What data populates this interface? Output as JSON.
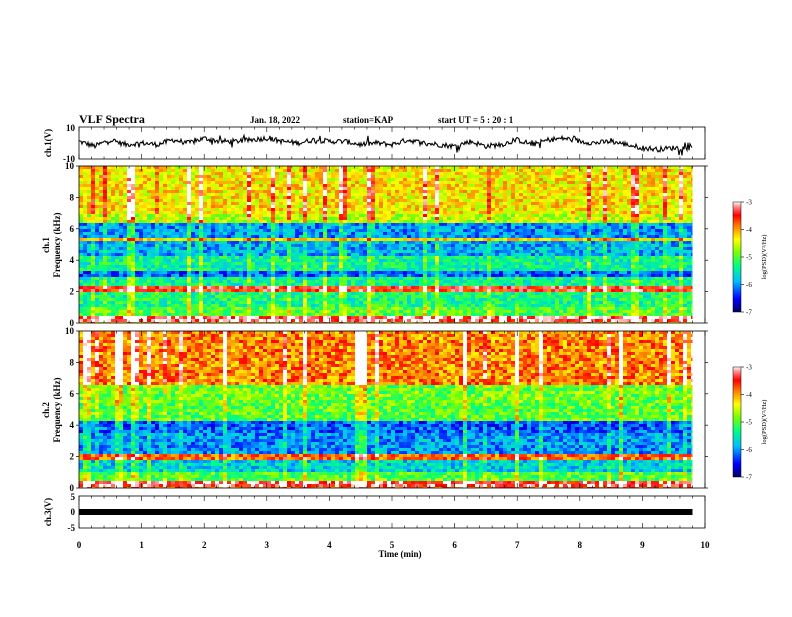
{
  "header": {
    "title": "VLF Spectra",
    "date": "Jan. 18, 2022",
    "station": "station=KAP",
    "start_ut": "start UT =  5 : 20 : 1"
  },
  "chart_data": [
    {
      "type": "line",
      "panel": "ch1-waveform",
      "ylabel": "ch.1(V)",
      "ylim": [
        -10,
        10
      ],
      "y_ticks": [
        "10",
        "-10"
      ],
      "x": [
        0,
        0.25,
        0.5,
        0.75,
        1.0,
        1.25,
        1.5,
        1.75,
        2.0,
        2.25,
        2.5,
        2.75,
        3.0,
        3.25,
        3.5,
        3.75,
        4.0,
        4.25,
        4.5,
        4.75,
        5.0,
        5.25,
        5.5,
        5.75,
        6.0,
        6.25,
        6.5,
        6.75,
        7.0,
        7.25,
        7.5,
        7.75,
        8.0,
        8.25,
        8.5,
        8.75,
        9.0,
        9.25,
        9.5,
        9.8
      ],
      "values": [
        1,
        -2,
        2,
        -1,
        0,
        -1,
        2,
        0,
        3,
        1,
        1,
        2,
        3,
        1,
        0,
        2,
        1,
        1,
        -1,
        0,
        -1,
        2,
        0,
        -1,
        -2,
        1,
        -2,
        -1,
        2,
        -1,
        2,
        3,
        1,
        0,
        1,
        -1,
        -3,
        -4,
        -3,
        -3
      ],
      "xlim": [
        0,
        10
      ]
    },
    {
      "type": "heatmap",
      "panel": "ch1-spectrogram",
      "ylabel": "ch.1",
      "ylabel2": "Frequency (kHz)",
      "ylim": [
        0,
        10
      ],
      "y_ticks": [
        "0",
        "2",
        "4",
        "6",
        "8",
        "10"
      ],
      "xlim": [
        0,
        10
      ],
      "freq_band_intensity": [
        {
          "from": 0,
          "to": 0.4,
          "level": -3.2
        },
        {
          "from": 0.4,
          "to": 1.0,
          "level": -5.0
        },
        {
          "from": 1.0,
          "to": 2.0,
          "level": -5.3
        },
        {
          "from": 2.0,
          "to": 2.3,
          "level": -3.5
        },
        {
          "from": 2.3,
          "to": 3.0,
          "level": -5.4
        },
        {
          "from": 3.0,
          "to": 3.4,
          "level": -6.2
        },
        {
          "from": 3.4,
          "to": 4.2,
          "level": -5.4
        },
        {
          "from": 4.2,
          "to": 5.2,
          "level": -5.9
        },
        {
          "from": 5.2,
          "to": 5.5,
          "level": -4.3
        },
        {
          "from": 5.5,
          "to": 6.3,
          "level": -6.0
        },
        {
          "from": 6.3,
          "to": 7.0,
          "level": -4.6
        },
        {
          "from": 7.0,
          "to": 10.0,
          "level": -4.3
        }
      ]
    },
    {
      "type": "heatmap",
      "panel": "ch2-spectrogram",
      "ylabel": "ch.2",
      "ylabel2": "Frequency (kHz)",
      "ylim": [
        0,
        10
      ],
      "y_ticks": [
        "0",
        "2",
        "4",
        "6",
        "8",
        "10"
      ],
      "xlim": [
        0,
        10
      ],
      "freq_band_intensity": [
        {
          "from": 0,
          "to": 0.4,
          "level": -3.3
        },
        {
          "from": 0.4,
          "to": 1.0,
          "level": -5.0
        },
        {
          "from": 1.0,
          "to": 1.7,
          "level": -5.7
        },
        {
          "from": 1.7,
          "to": 2.1,
          "level": -3.8
        },
        {
          "from": 2.1,
          "to": 3.5,
          "level": -6.0
        },
        {
          "from": 3.5,
          "to": 4.2,
          "level": -6.2
        },
        {
          "from": 4.2,
          "to": 5.5,
          "level": -5.0
        },
        {
          "from": 5.5,
          "to": 6.5,
          "level": -4.9
        },
        {
          "from": 6.5,
          "to": 10.0,
          "level": -3.9
        }
      ]
    },
    {
      "type": "line",
      "panel": "ch3-waveform",
      "ylabel": "ch.3(V)",
      "ylim": [
        -5,
        5
      ],
      "y_ticks": [
        "5",
        "0",
        "-5"
      ],
      "x": [
        0,
        9.8
      ],
      "values": [
        0,
        0
      ],
      "xlim": [
        0,
        10
      ],
      "xlabel": "Time (min)",
      "x_ticks": [
        "0",
        "1",
        "2",
        "3",
        "4",
        "5",
        "6",
        "7",
        "8",
        "9",
        "10"
      ]
    }
  ],
  "colorbars": [
    {
      "ticks": [
        "-3",
        "-4",
        "-5",
        "-6",
        "-7"
      ],
      "label": "log(PSD)(V²/Hz)",
      "range": [
        -7,
        -3
      ]
    },
    {
      "ticks": [
        "-3",
        "-4",
        "-5",
        "-6",
        "-7"
      ],
      "label": "log(PSD)(V²/Hz)",
      "range": [
        -7,
        -3
      ]
    }
  ],
  "colors": {
    "waveform": "#000000",
    "colormap": [
      "#000080",
      "#0000ff",
      "#00bfff",
      "#00ff80",
      "#80ff00",
      "#ffff00",
      "#ff8000",
      "#ff0000",
      "#ff8080",
      "#ffffff"
    ]
  }
}
